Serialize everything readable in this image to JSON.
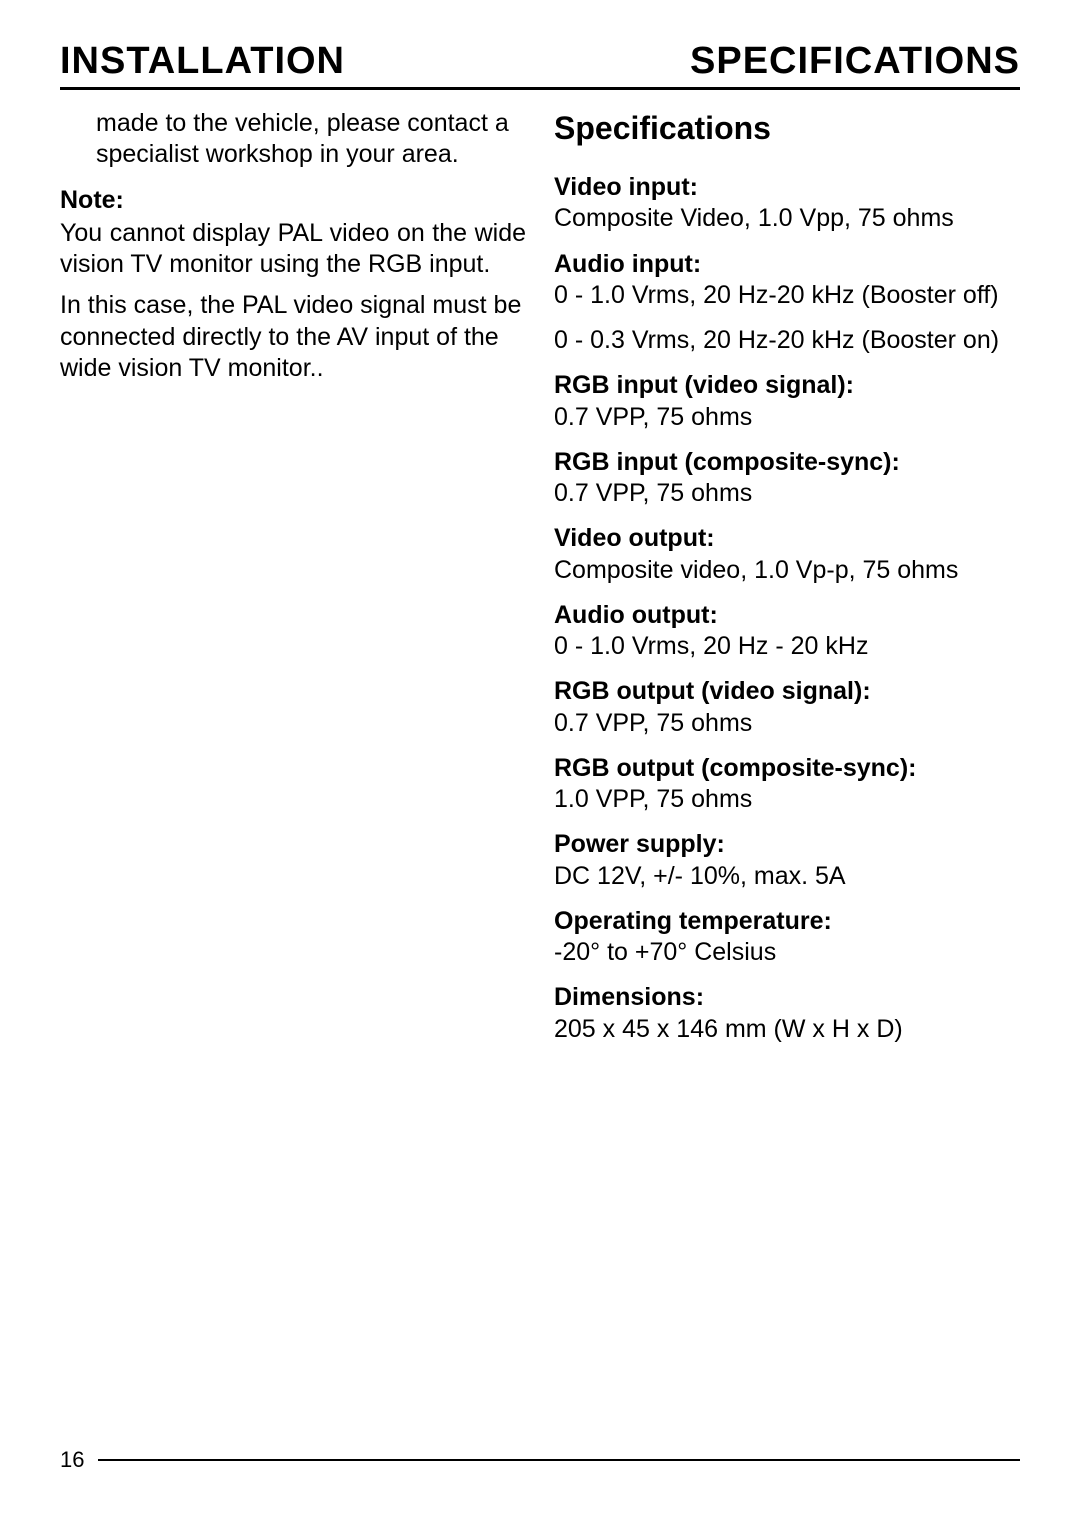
{
  "header": {
    "left": "INSTALLATION",
    "right": "SPECIFICATIONS"
  },
  "left_column": {
    "intro": "made to the vehicle, please contact a specialist workshop in your area.",
    "note_label": "Note:",
    "note_p1": "You cannot display PAL video on the wide vision TV monitor using the RGB input.",
    "note_p2": "In this case, the PAL video signal must be connected directly to the AV input of the wide vision TV monitor.."
  },
  "right_column": {
    "title": "Specifications",
    "specs": [
      {
        "label": "Video input:",
        "value": "Composite Video, 1.0 Vpp, 75 ohms"
      },
      {
        "label": "Audio input:",
        "value": "0 - 1.0 Vrms, 20 Hz-20 kHz (Booster off)"
      },
      {
        "label": "",
        "value": "0 - 0.3 Vrms, 20 Hz-20 kHz (Booster on)"
      },
      {
        "label": "RGB input (video signal):",
        "value": "0.7 VPP, 75 ohms"
      },
      {
        "label": "RGB input (composite-sync):",
        "value": "0.7 VPP, 75 ohms"
      },
      {
        "label": "Video output:",
        "value": "Composite video, 1.0 Vp-p, 75 ohms"
      },
      {
        "label": "Audio output:",
        "value": "0 - 1.0 Vrms, 20 Hz - 20 kHz"
      },
      {
        "label": "RGB output (video signal):",
        "value": "0.7 VPP, 75 ohms"
      },
      {
        "label": "RGB output (composite-sync):",
        "value": "1.0 VPP, 75 ohms"
      },
      {
        "label": "Power supply:",
        "value": "DC 12V, +/- 10%, max. 5A"
      },
      {
        "label": "Operating temperature:",
        "value": "-20° to +70° Celsius"
      },
      {
        "label": "Dimensions:",
        "value": "205 x 45 x 146 mm (W x H x D)"
      }
    ]
  },
  "footer": {
    "page_number": "16"
  }
}
